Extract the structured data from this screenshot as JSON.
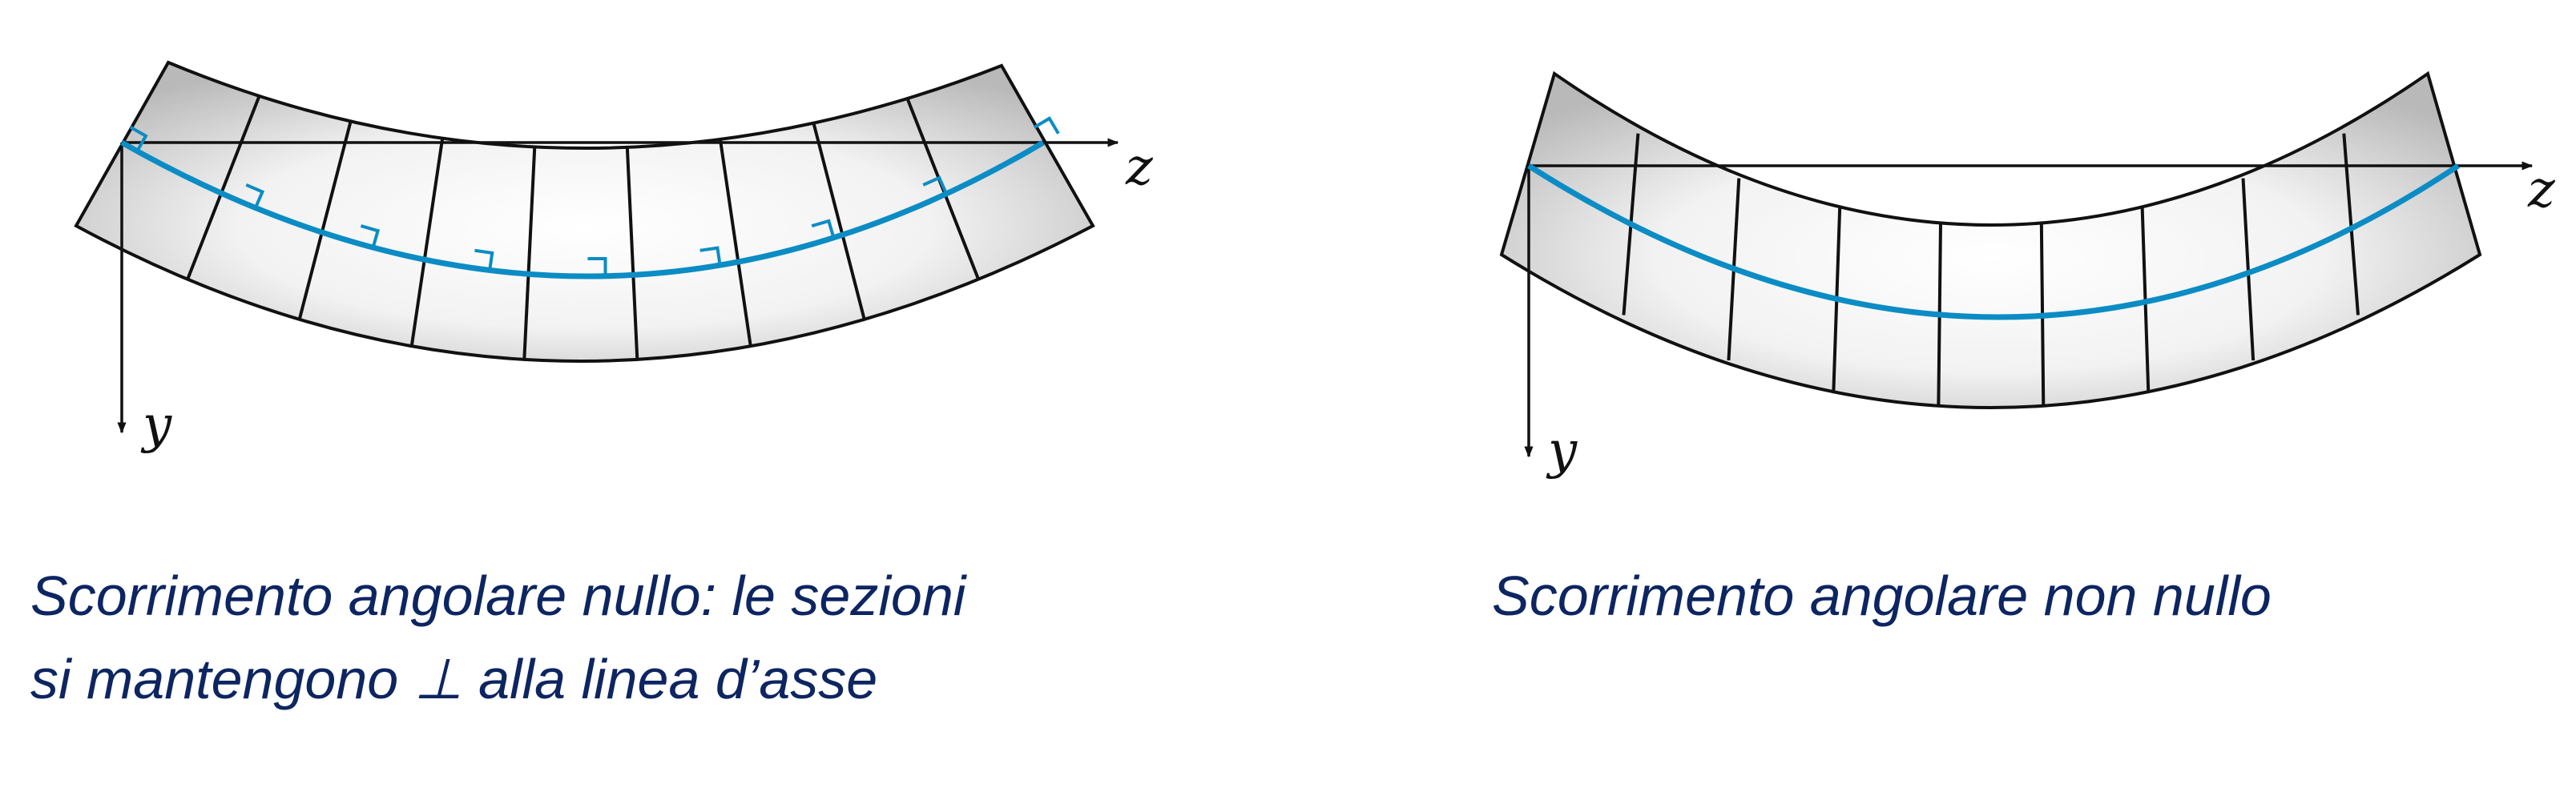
{
  "diagrams": [
    {
      "id": "zero-shear",
      "axis_z_label": "z",
      "axis_y_label": "y",
      "caption_lines": [
        "Scorrimento angolare nullo: le sezioni",
        "si mantengono ⊥ alla linea d’asse"
      ],
      "sections_perpendicular": true,
      "section_count": 9
    },
    {
      "id": "nonzero-shear",
      "axis_z_label": "z",
      "axis_y_label": "y",
      "caption_lines": [
        "Scorrimento angolare non nullo"
      ],
      "sections_perpendicular": false,
      "section_count": 9
    }
  ],
  "colors": {
    "axis_line": "#0b8cc4",
    "caption_text": "#0d2561",
    "outline": "#111111",
    "beam_fill_light": "#ffffff",
    "beam_fill_dark": "#bdbdbd"
  }
}
